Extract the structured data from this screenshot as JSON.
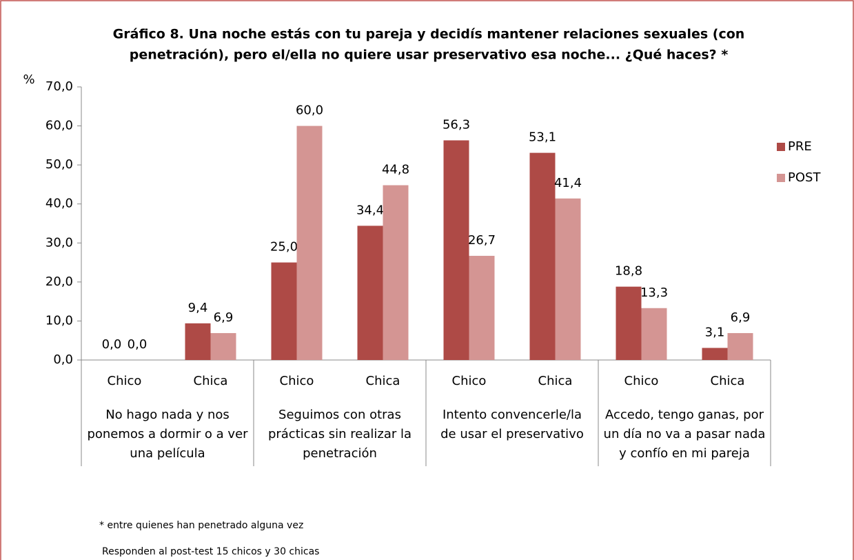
{
  "chart_data": {
    "type": "bar",
    "title": [
      "Gráfico 8. Una noche estás con tu pareja y decidís mantener relaciones sexuales (con",
      "penetración), pero el/ella no quiere usar preservativo esa noche... ¿Qué haces? *"
    ],
    "ylabel": "%",
    "categories": [
      "Chico",
      "Chica",
      "Chico",
      "Chica",
      "Chico",
      "Chica",
      "Chico",
      "Chica"
    ],
    "groups": [
      [
        "No hago nada y nos",
        "ponemos a dormir o a ver",
        "una película"
      ],
      [
        "Seguimos con otras",
        "prácticas sin realizar la",
        "penetración"
      ],
      [
        "Intento convencerle/la",
        "de usar el preservativo"
      ],
      [
        "Accedo, tengo ganas, por",
        "un día no va a pasar nada",
        "y confío en mi pareja"
      ]
    ],
    "series": [
      {
        "name": "PRE",
        "color": "#ae4a46",
        "values": [
          0,
          9.4,
          25,
          34.4,
          56.3,
          53.1,
          18.8,
          3.1
        ],
        "value_labels": [
          "0,0",
          "9,4",
          "25,0",
          "34,4",
          "56,3",
          "53,1",
          "18,8",
          "3,1"
        ]
      },
      {
        "name": "POST",
        "color": "#d49593",
        "values": [
          0,
          6.9,
          60,
          44.8,
          26.7,
          41.4,
          13.3,
          6.9
        ],
        "value_labels": [
          "0,0",
          "6,9",
          "60,0",
          "44,8",
          "26,7",
          "41,4",
          "13,3",
          "6,9"
        ]
      }
    ],
    "ylim": [
      0,
      70
    ],
    "yticks": [
      {
        "value": 0,
        "label": "0,0"
      },
      {
        "value": 10,
        "label": "10,0"
      },
      {
        "value": 20,
        "label": "20,0"
      },
      {
        "value": 30,
        "label": "30,0"
      },
      {
        "value": 40,
        "label": "40,0"
      },
      {
        "value": 50,
        "label": "50,0"
      },
      {
        "value": 60,
        "label": "60,0"
      },
      {
        "value": 70,
        "label": "70,0"
      }
    ],
    "legend": "right",
    "notes": [
      "* entre quienes han penetrado alguna vez",
      "Responden al post-test 15 chicos y 30 chicas"
    ]
  }
}
